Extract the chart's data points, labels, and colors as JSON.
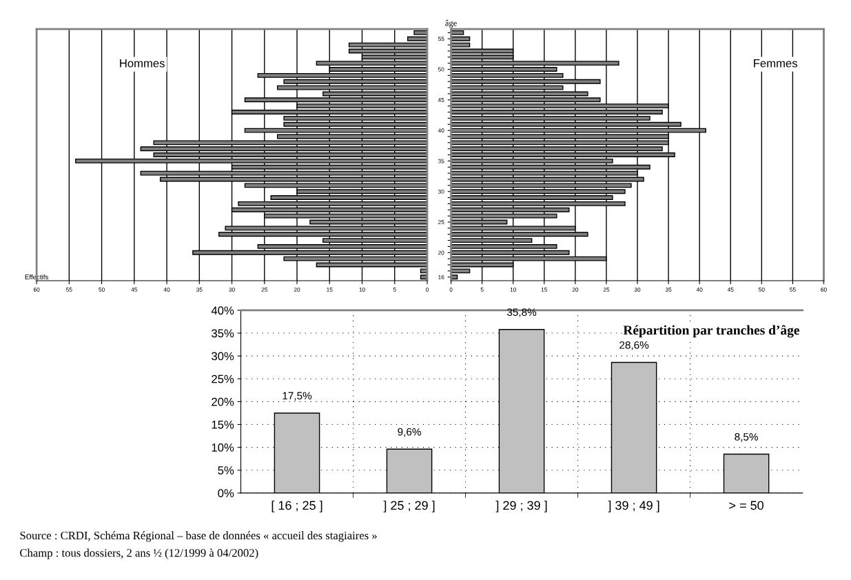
{
  "chart_data": [
    {
      "type": "bar",
      "orientation": "horizontal",
      "annotations": [
        "Hommes"
      ],
      "xlabel": "Effectifs",
      "categories": [
        null,
        "55",
        null,
        null,
        null,
        null,
        "50",
        null,
        null,
        null,
        null,
        "45",
        null,
        null,
        null,
        null,
        "40",
        null,
        null,
        null,
        null,
        "35",
        null,
        null,
        null,
        null,
        "30",
        null,
        null,
        null,
        null,
        "25",
        null,
        null,
        null,
        null,
        "20",
        null,
        null,
        null,
        "16"
      ],
      "values": [
        2,
        3,
        12,
        12,
        10,
        17,
        15,
        26,
        22,
        23,
        16,
        28,
        20,
        30,
        22,
        22,
        28,
        23,
        42,
        44,
        42,
        54,
        30,
        44,
        41,
        28,
        20,
        24,
        29,
        30,
        25,
        18,
        31,
        32,
        16,
        26,
        36,
        22,
        17,
        1,
        1
      ],
      "color": "#808080",
      "xlim": [
        60,
        0
      ],
      "xticks": [
        60,
        55,
        50,
        45,
        40,
        35,
        30,
        25,
        20,
        15,
        10,
        5,
        0
      ],
      "grid": "x",
      "tick_labels": "x"
    },
    {
      "type": "bar",
      "orientation": "horizontal",
      "annotations": [
        "Femmes"
      ],
      "ylabel": "âge",
      "categories": [
        null,
        "55",
        null,
        null,
        null,
        null,
        "50",
        null,
        null,
        null,
        null,
        "45",
        null,
        null,
        null,
        null,
        "40",
        null,
        null,
        null,
        null,
        "35",
        null,
        null,
        null,
        null,
        "30",
        null,
        null,
        null,
        null,
        "25",
        null,
        null,
        null,
        null,
        "20",
        null,
        null,
        null,
        "16"
      ],
      "values": [
        2,
        3,
        3,
        10,
        10,
        27,
        17,
        18,
        24,
        18,
        22,
        24,
        35,
        34,
        32,
        37,
        41,
        35,
        35,
        34,
        36,
        26,
        32,
        30,
        31,
        29,
        28,
        26,
        28,
        19,
        17,
        9,
        20,
        22,
        13,
        17,
        19,
        25,
        10,
        3,
        1
      ],
      "color": "#808080",
      "xlim": [
        0,
        60
      ],
      "xticks": [
        0,
        5,
        10,
        15,
        20,
        25,
        30,
        35,
        40,
        45,
        50,
        55,
        60
      ],
      "grid": "x"
    },
    {
      "type": "bar",
      "title": "Répartition par tranches d’âge",
      "categories": [
        "[ 16 ; 25 ]",
        "] 25 ; 29 ]",
        "] 29 ; 39 ]",
        "] 39 ; 49 ]",
        "> = 50"
      ],
      "values": [
        17.5,
        9.6,
        35.8,
        28.6,
        8.5
      ],
      "value_labels": [
        "17,5%",
        "9,6%",
        "35,8%",
        "28,6%",
        "8,5%"
      ],
      "color": "#c0c0c0",
      "ylim": [
        0,
        40
      ],
      "yticks": [
        {
          "value": 0,
          "label": "0%"
        },
        {
          "value": 5,
          "label": "5%"
        },
        {
          "value": 10,
          "label": "10%"
        },
        {
          "value": 15,
          "label": "15%"
        },
        {
          "value": 20,
          "label": "20%"
        },
        {
          "value": 25,
          "label": "25%"
        },
        {
          "value": 30,
          "label": "30%"
        },
        {
          "value": 35,
          "label": "35%"
        },
        {
          "value": 40,
          "label": "40%"
        }
      ],
      "grid": true,
      "annotations": [
        "Source : CRDI, Schéma Régional – base de données « accueil des stagiaires »",
        "Champ : tous dossiers, 2 ans ½ (12/1999 à 04/2002)"
      ]
    }
  ]
}
